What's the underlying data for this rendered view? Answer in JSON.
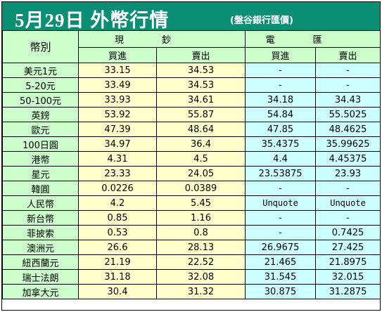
{
  "header": {
    "title": "5月29日 外幣行情",
    "subtitle": "(盤谷銀行匯價)",
    "bg_color": "#0a8f74"
  },
  "table": {
    "corner_label": "幣別",
    "group_cash": "現鈔",
    "group_tt": "電匯",
    "buy_label": "買進",
    "sell_label": "賣出",
    "colors": {
      "name_bg": "#ccffcc",
      "cash_bg": "#ffffcc",
      "tt_bg": "#ccffff"
    },
    "rows": [
      {
        "name": "美元1元",
        "cash_buy": "33.15",
        "cash_sell": "34.53",
        "tt_buy": "-",
        "tt_sell": "-"
      },
      {
        "name": "5-20元",
        "cash_buy": "33.49",
        "cash_sell": "34.53",
        "tt_buy": "-",
        "tt_sell": "-"
      },
      {
        "name": "50-100元",
        "cash_buy": "33.93",
        "cash_sell": "34.61",
        "tt_buy": "34.18",
        "tt_sell": "34.43"
      },
      {
        "name": "英鎊",
        "cash_buy": "53.92",
        "cash_sell": "55.87",
        "tt_buy": "54.84",
        "tt_sell": "55.5025"
      },
      {
        "name": "歐元",
        "cash_buy": "47.39",
        "cash_sell": "48.64",
        "tt_buy": "47.85",
        "tt_sell": "48.4625"
      },
      {
        "name": "100日圓",
        "cash_buy": "34.97",
        "cash_sell": "36.4",
        "tt_buy": "35.4375",
        "tt_sell": "35.99625"
      },
      {
        "name": "港幣",
        "cash_buy": "4.31",
        "cash_sell": "4.5",
        "tt_buy": "4.4",
        "tt_sell": "4.45375"
      },
      {
        "name": "星元",
        "cash_buy": "23.33",
        "cash_sell": "24.05",
        "tt_buy": "23.53875",
        "tt_sell": "23.93"
      },
      {
        "name": "韓圓",
        "cash_buy": "0.0226",
        "cash_sell": "0.0389",
        "tt_buy": "-",
        "tt_sell": "-"
      },
      {
        "name": "人民幣",
        "cash_buy": "4.2",
        "cash_sell": "5.45",
        "tt_buy": "Unquote",
        "tt_sell": "Unquote"
      },
      {
        "name": "新台幣",
        "cash_buy": "0.85",
        "cash_sell": "1.16",
        "tt_buy": "-",
        "tt_sell": "-"
      },
      {
        "name": "菲披索",
        "cash_buy": "0.53",
        "cash_sell": "0.8",
        "tt_buy": "-",
        "tt_sell": "0.7425"
      },
      {
        "name": "澳洲元",
        "cash_buy": "26.6",
        "cash_sell": "28.13",
        "tt_buy": "26.9675",
        "tt_sell": "27.425"
      },
      {
        "name": "紐西蘭元",
        "cash_buy": "21.19",
        "cash_sell": "22.52",
        "tt_buy": "21.465",
        "tt_sell": "21.8975"
      },
      {
        "name": "瑞士法朗",
        "cash_buy": "31.18",
        "cash_sell": "32.08",
        "tt_buy": "31.545",
        "tt_sell": "32.015"
      },
      {
        "name": "加拿大元",
        "cash_buy": "30.4",
        "cash_sell": "31.32",
        "tt_buy": "30.875",
        "tt_sell": "31.2875"
      }
    ]
  }
}
